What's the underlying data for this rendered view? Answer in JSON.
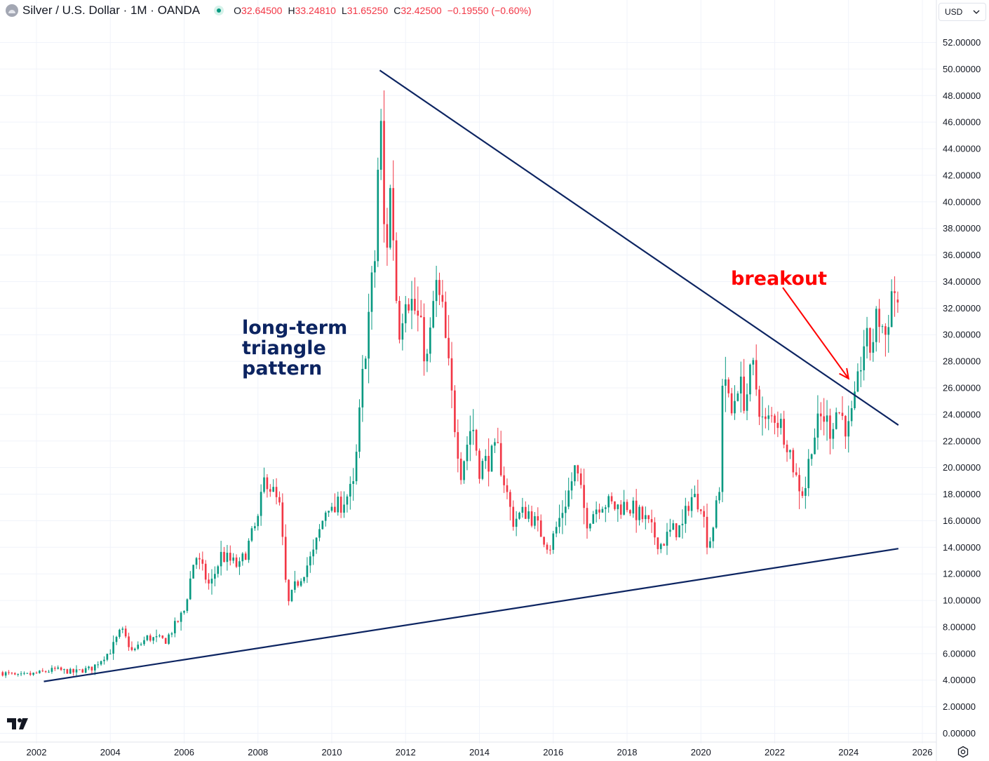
{
  "header": {
    "title": "Silver / U.S. Dollar · 1M · OANDA",
    "ohlc": [
      {
        "label": "O",
        "value": "32.64500"
      },
      {
        "label": "H",
        "value": "33.24810"
      },
      {
        "label": "L",
        "value": "31.65250"
      },
      {
        "label": "C",
        "value": "32.42500"
      }
    ],
    "change": "−0.19550 (−0.60%)"
  },
  "currency": {
    "label": "USD"
  },
  "icons": {
    "symbol": "silver-symbol-icon",
    "status": "market-status-dot-icon",
    "logo": "tradingview-logo-icon",
    "settings": "settings-icon",
    "chevron": "chevron-down-icon"
  },
  "colors": {
    "up": "#089981",
    "down": "#f23645",
    "trendline": "#0c2461",
    "annotation_red": "#ff0000",
    "grid": "#f0f3fa"
  },
  "chart_data": {
    "type": "candlestick",
    "interval": "1M",
    "x_ticks": [
      "2002",
      "2004",
      "2006",
      "2008",
      "2010",
      "2012",
      "2014",
      "2016",
      "2018",
      "2020",
      "2022",
      "2024",
      "2026"
    ],
    "y_ticks": [
      "0.00000",
      "2.00000",
      "4.00000",
      "6.00000",
      "8.00000",
      "10.00000",
      "12.00000",
      "14.00000",
      "16.00000",
      "18.00000",
      "20.00000",
      "22.00000",
      "24.00000",
      "26.00000",
      "28.00000",
      "30.00000",
      "32.00000",
      "34.00000",
      "36.00000",
      "38.00000",
      "40.00000",
      "42.00000",
      "44.00000",
      "46.00000",
      "48.00000",
      "50.00000",
      "52.00000"
    ],
    "ylim": [
      0,
      53
    ],
    "xlim": [
      2001.0,
      2026.9
    ],
    "close_path": [
      [
        2001.0,
        4.6
      ],
      [
        2001.5,
        4.3
      ],
      [
        2002.0,
        4.5
      ],
      [
        2002.5,
        4.8
      ],
      [
        2003.0,
        4.6
      ],
      [
        2003.5,
        4.9
      ],
      [
        2004.0,
        6.2
      ],
      [
        2004.3,
        7.8
      ],
      [
        2004.6,
        6.1
      ],
      [
        2005.0,
        7.2
      ],
      [
        2005.5,
        7.0
      ],
      [
        2006.0,
        9.2
      ],
      [
        2006.3,
        13.5
      ],
      [
        2006.7,
        11.0
      ],
      [
        2007.0,
        13.4
      ],
      [
        2007.5,
        12.5
      ],
      [
        2008.0,
        16.0
      ],
      [
        2008.2,
        19.5
      ],
      [
        2008.6,
        16.8
      ],
      [
        2008.8,
        9.5
      ],
      [
        2009.0,
        11.0
      ],
      [
        2009.5,
        13.5
      ],
      [
        2009.9,
        17.5
      ],
      [
        2010.0,
        16.5
      ],
      [
        2010.6,
        18.5
      ],
      [
        2010.9,
        29.0
      ],
      [
        2011.2,
        36.5
      ],
      [
        2011.3,
        48.2
      ],
      [
        2011.45,
        35.0
      ],
      [
        2011.6,
        41.5
      ],
      [
        2011.8,
        30.0
      ],
      [
        2012.0,
        33.5
      ],
      [
        2012.3,
        31.5
      ],
      [
        2012.6,
        27.8
      ],
      [
        2012.8,
        33.8
      ],
      [
        2013.0,
        31.5
      ],
      [
        2013.3,
        24.0
      ],
      [
        2013.5,
        19.8
      ],
      [
        2013.8,
        23.5
      ],
      [
        2014.0,
        20.0
      ],
      [
        2014.5,
        21.2
      ],
      [
        2014.9,
        16.0
      ],
      [
        2015.3,
        16.8
      ],
      [
        2015.9,
        14.0
      ],
      [
        2016.4,
        18.0
      ],
      [
        2016.6,
        20.0
      ],
      [
        2016.9,
        16.0
      ],
      [
        2017.3,
        17.5
      ],
      [
        2017.7,
        17.0
      ],
      [
        2018.0,
        17.2
      ],
      [
        2018.5,
        16.0
      ],
      [
        2018.9,
        14.2
      ],
      [
        2019.2,
        15.2
      ],
      [
        2019.5,
        15.5
      ],
      [
        2019.7,
        17.8
      ],
      [
        2020.0,
        17.5
      ],
      [
        2020.2,
        14.0
      ],
      [
        2020.5,
        18.0
      ],
      [
        2020.6,
        28.5
      ],
      [
        2020.8,
        23.5
      ],
      [
        2021.0,
        26.5
      ],
      [
        2021.2,
        25.0
      ],
      [
        2021.4,
        27.5
      ],
      [
        2021.7,
        23.0
      ],
      [
        2022.0,
        24.0
      ],
      [
        2022.3,
        22.5
      ],
      [
        2022.6,
        19.0
      ],
      [
        2022.8,
        18.0
      ],
      [
        2023.0,
        22.0
      ],
      [
        2023.3,
        24.0
      ],
      [
        2023.5,
        23.0
      ],
      [
        2023.7,
        24.5
      ],
      [
        2024.0,
        22.8
      ],
      [
        2024.2,
        25.0
      ],
      [
        2024.4,
        29.5
      ],
      [
        2024.6,
        29.0
      ],
      [
        2024.8,
        31.5
      ],
      [
        2025.0,
        30.0
      ],
      [
        2025.2,
        33.8
      ],
      [
        2025.35,
        32.4
      ]
    ],
    "last_candle": {
      "open": 32.645,
      "high": 33.2481,
      "low": 31.6525,
      "close": 32.425
    },
    "lines": [
      {
        "name": "resistance",
        "from": [
          2011.3,
          49.9
        ],
        "to": [
          2025.35,
          23.2
        ]
      },
      {
        "name": "support",
        "from": [
          2002.2,
          3.9
        ],
        "to": [
          2025.35,
          13.9
        ]
      }
    ],
    "annotations": [
      {
        "text": "long-term triangle pattern",
        "lines": [
          "long-term",
          "triangle",
          "pattern"
        ],
        "color": "#0c2461"
      },
      {
        "text": "breakout",
        "color": "#ff0000",
        "arrow_to": [
          2024.0,
          26.7
        ]
      }
    ]
  }
}
